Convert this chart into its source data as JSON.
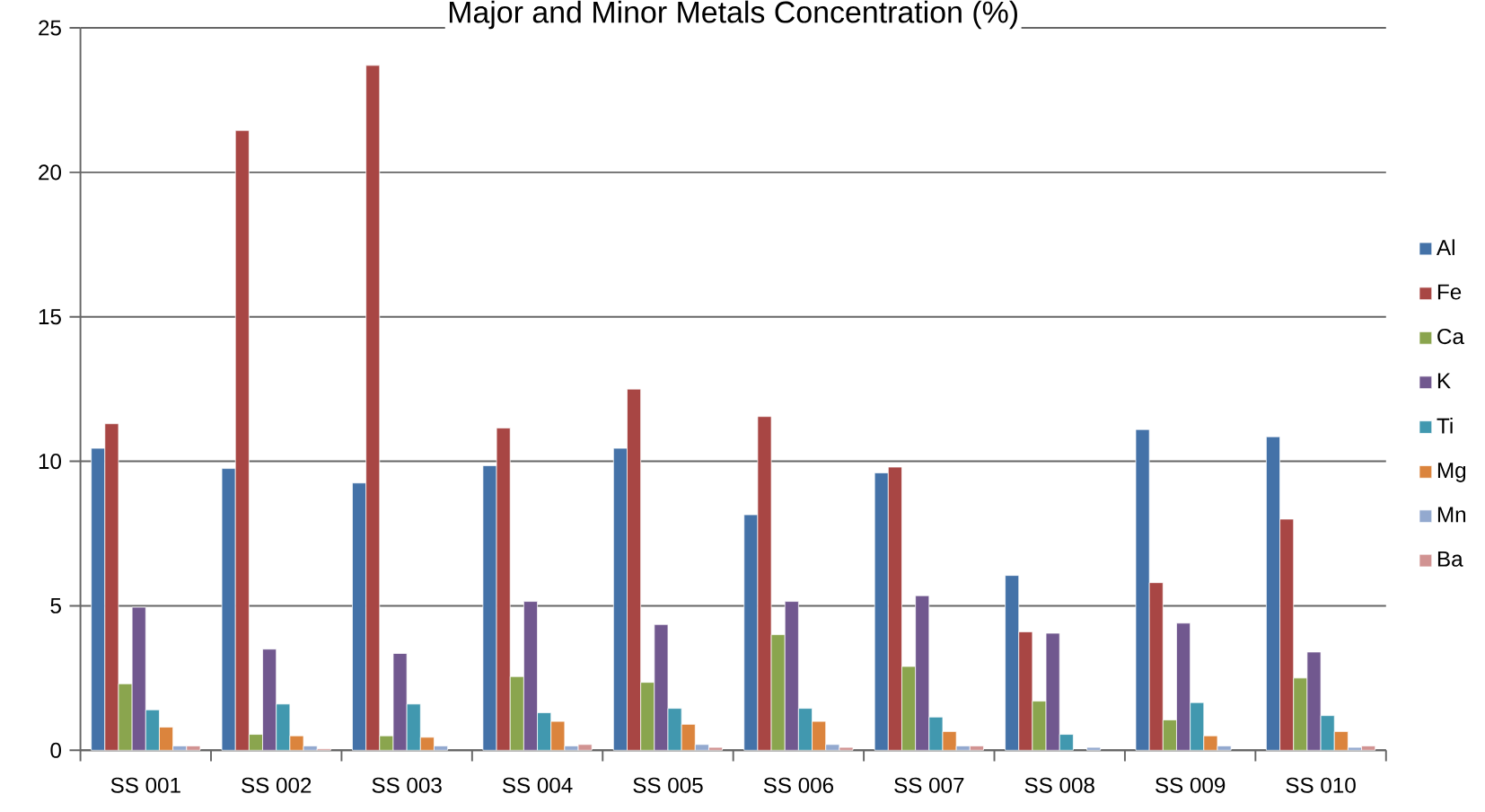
{
  "chart_data": {
    "type": "bar",
    "title": "Major and Minor Metals Concentration (%)",
    "categories": [
      "SS 001",
      "SS 002",
      "SS 003",
      "SS 004",
      "SS 005",
      "SS 006",
      "SS 007",
      "SS 008",
      "SS 009",
      "SS 010"
    ],
    "series": [
      {
        "name": "Al",
        "color": "#4472a8",
        "values": [
          10.45,
          9.75,
          9.25,
          9.85,
          10.45,
          8.15,
          9.6,
          6.05,
          11.1,
          10.85
        ]
      },
      {
        "name": "Fe",
        "color": "#a84644",
        "values": [
          11.3,
          21.45,
          23.7,
          11.15,
          12.5,
          11.55,
          9.8,
          4.1,
          5.8,
          8.0
        ]
      },
      {
        "name": "Ca",
        "color": "#8aa54e",
        "values": [
          2.3,
          0.55,
          0.5,
          2.55,
          2.35,
          4.0,
          2.9,
          1.7,
          1.05,
          2.5
        ]
      },
      {
        "name": "K",
        "color": "#71588f",
        "values": [
          4.95,
          3.5,
          3.35,
          5.15,
          4.35,
          5.15,
          5.35,
          4.05,
          4.4,
          3.4
        ]
      },
      {
        "name": "Ti",
        "color": "#4198af",
        "values": [
          1.4,
          1.6,
          1.6,
          1.3,
          1.45,
          1.45,
          1.15,
          0.55,
          1.65,
          1.2
        ]
      },
      {
        "name": "Mg",
        "color": "#db843d",
        "values": [
          0.8,
          0.5,
          0.45,
          1.0,
          0.9,
          1.0,
          0.65,
          null,
          0.5,
          0.65
        ]
      },
      {
        "name": "Mn",
        "color": "#93a9cf",
        "values": [
          0.15,
          0.15,
          0.15,
          0.15,
          0.2,
          0.2,
          0.15,
          0.1,
          0.15,
          0.1
        ]
      },
      {
        "name": "Ba",
        "color": "#d19392",
        "values": [
          0.15,
          0.05,
          null,
          0.2,
          0.1,
          0.1,
          0.15,
          null,
          null,
          0.15
        ]
      }
    ],
    "ylim": [
      0,
      25
    ],
    "yticks": [
      0,
      5,
      10,
      15,
      20,
      25
    ],
    "grid": "y",
    "legend": "right"
  }
}
